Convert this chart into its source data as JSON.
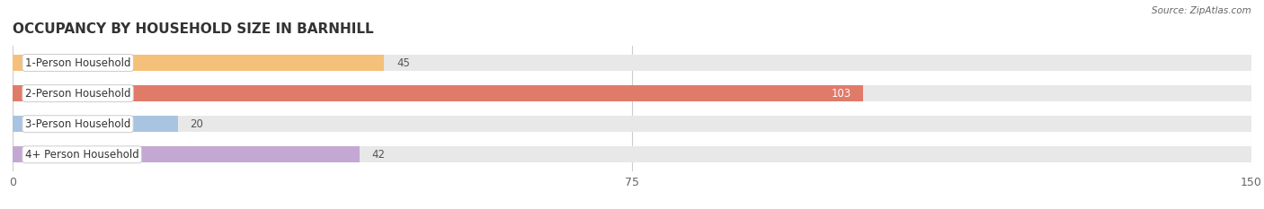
{
  "title": "OCCUPANCY BY HOUSEHOLD SIZE IN BARNHILL",
  "source": "Source: ZipAtlas.com",
  "categories": [
    "1-Person Household",
    "2-Person Household",
    "3-Person Household",
    "4+ Person Household"
  ],
  "values": [
    45,
    103,
    20,
    42
  ],
  "bar_colors": [
    "#f5c07a",
    "#e07b6a",
    "#a8c4e0",
    "#c4a8d4"
  ],
  "bar_bg_color": "#e8e8e8",
  "xlim": [
    0,
    150
  ],
  "xticks": [
    0,
    75,
    150
  ],
  "figsize": [
    14.06,
    2.33
  ],
  "dpi": 100,
  "title_fontsize": 11,
  "label_fontsize": 8.5,
  "tick_fontsize": 9,
  "value_fontsize": 8.5,
  "bg_color": "#ffffff",
  "bar_height": 0.52,
  "label_box_color": "#ffffff",
  "label_box_edge": "#cccccc"
}
